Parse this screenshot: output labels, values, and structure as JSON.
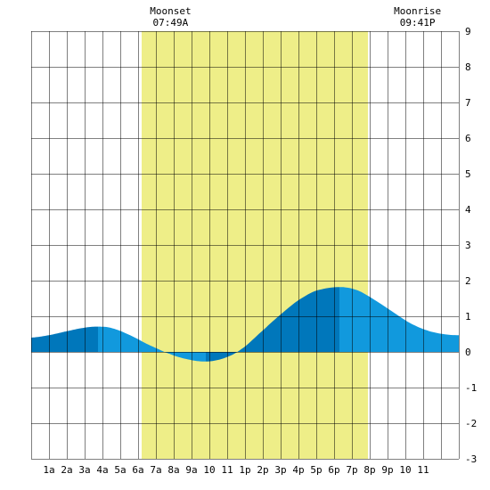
{
  "chart_data": {
    "type": "area",
    "x_tick_labels": [
      "1a",
      "2a",
      "3a",
      "4a",
      "5a",
      "6a",
      "7a",
      "8a",
      "9a",
      "10",
      "11",
      "1p",
      "2p",
      "3p",
      "4p",
      "5p",
      "6p",
      "7p",
      "8p",
      "9p",
      "10",
      "11"
    ],
    "y_tick_labels": [
      "9",
      "8",
      "7",
      "6",
      "5",
      "4",
      "3",
      "2",
      "1",
      "0",
      "-1",
      "-2",
      "-3"
    ],
    "ylim": [
      -3,
      9
    ],
    "xlim_hours": [
      0,
      24
    ],
    "grid": true,
    "daylight_hours": [
      6.2,
      18.9
    ],
    "annotations": [
      {
        "label": "Moonset",
        "time": "07:49A",
        "hour": 7.82
      },
      {
        "label": "Moonrise",
        "time": "09:41P",
        "hour": 21.68
      }
    ],
    "series": [
      {
        "x": [
          0,
          1,
          2,
          3,
          3.75,
          4.5,
          5.5,
          6.5,
          7.8,
          8.8,
          9.8,
          10.8,
          11.8,
          13,
          14,
          15,
          16,
          17.3,
          18.3,
          19.3,
          20.3,
          21.3,
          22.3,
          23.3,
          24
        ],
        "y": [
          0.4,
          0.47,
          0.58,
          0.68,
          0.71,
          0.67,
          0.48,
          0.22,
          -0.06,
          -0.21,
          -0.27,
          -0.18,
          0.08,
          0.6,
          1.05,
          1.45,
          1.72,
          1.82,
          1.73,
          1.45,
          1.12,
          0.8,
          0.59,
          0.49,
          0.47
        ]
      }
    ],
    "colors": {
      "tide": "#1199dd",
      "tide_alt": "#0077bb",
      "daylight": "#eeee88",
      "grid": "#000000",
      "background": "#ffffff"
    }
  }
}
